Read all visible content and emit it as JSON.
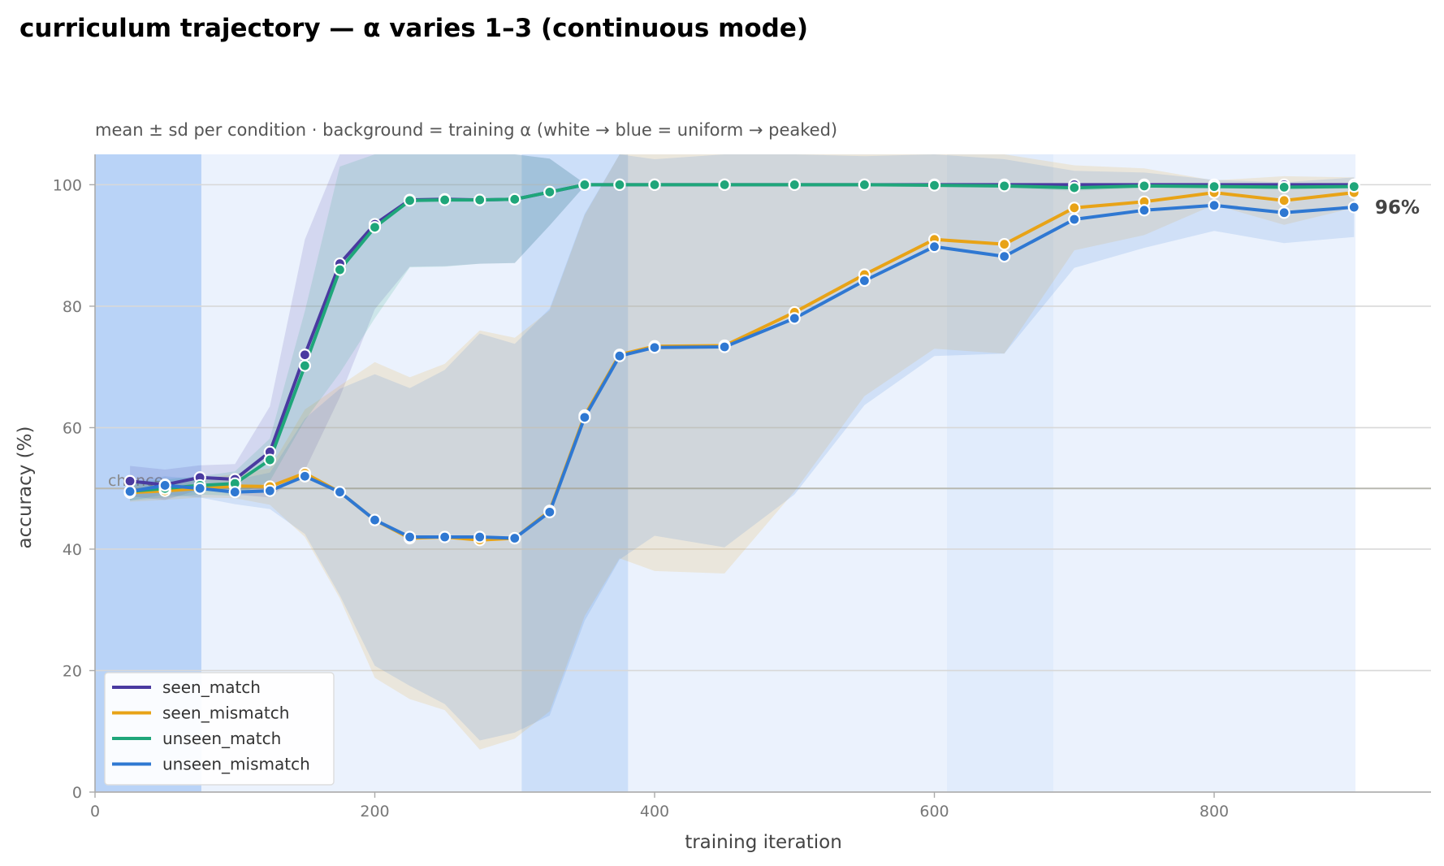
{
  "chart_data": {
    "type": "line",
    "title": "curriculum trajectory — α varies 1–3 (continuous mode)",
    "subtitle": "mean ± sd per condition · background = training α (white → blue = uniform → peaked)",
    "xlabel": "training iteration",
    "ylabel": "accuracy (%)",
    "xlim": [
      0,
      955
    ],
    "ylim": [
      0,
      105
    ],
    "xticks": [
      0,
      200,
      400,
      600,
      800
    ],
    "yticks": [
      0,
      20,
      40,
      60,
      80,
      100
    ],
    "grid": "y",
    "legend_position": "lower-left",
    "chance_level": 50,
    "chance_label": "chance",
    "end_label": "96%",
    "x": [
      25,
      50,
      75,
      100,
      125,
      150,
      175,
      200,
      225,
      250,
      275,
      300,
      325,
      350,
      375,
      400,
      450,
      500,
      550,
      600,
      650,
      700,
      750,
      800,
      850,
      900
    ],
    "background_alpha_bands": [
      {
        "x0": 0,
        "x1": 76,
        "level": 0.75
      },
      {
        "x0": 76,
        "x1": 305,
        "level": 0.22
      },
      {
        "x0": 305,
        "x1": 381,
        "level": 0.55
      },
      {
        "x0": 381,
        "x1": 609,
        "level": 0.22
      },
      {
        "x0": 609,
        "x1": 685,
        "level": 0.32
      },
      {
        "x0": 685,
        "x1": 901,
        "level": 0.22
      }
    ],
    "series": [
      {
        "name": "seen_match",
        "color": "#4a3aa0",
        "values": [
          51.2,
          50.6,
          51.8,
          51.5,
          56.0,
          72.0,
          87.0,
          93.5,
          97.5,
          97.6,
          97.5,
          97.6,
          98.8,
          100,
          100,
          100,
          100,
          100,
          100,
          100,
          100,
          100,
          100,
          100,
          100,
          100
        ],
        "sd": [
          2.5,
          2.5,
          2.0,
          2.5,
          7.5,
          19.0,
          22.0,
          14.0,
          11.0,
          11.0,
          10.5,
          10.5,
          5.5,
          0.2,
          0.2,
          0.2,
          0.2,
          0.2,
          0.2,
          0.2,
          0.2,
          0.2,
          0.2,
          0.2,
          0.2,
          0.2
        ]
      },
      {
        "name": "seen_mismatch",
        "color": "#e8a317",
        "values": [
          49.3,
          49.6,
          50.0,
          50.4,
          50.3,
          52.5,
          49.4,
          44.8,
          41.8,
          42.0,
          41.5,
          41.8,
          46.3,
          62.0,
          72.0,
          73.4,
          73.5,
          79.0,
          85.2,
          91.0,
          90.2,
          96.2,
          97.2,
          98.7,
          97.4,
          98.7
        ],
        "sd": [
          1.5,
          1.5,
          1.5,
          2.0,
          3.0,
          10.5,
          17.5,
          26.0,
          26.5,
          28.5,
          34.5,
          33.0,
          33.0,
          33.0,
          33.5,
          37.0,
          37.5,
          29.5,
          20.0,
          18.0,
          18.0,
          7.0,
          5.5,
          2.0,
          4.0,
          2.5
        ]
      },
      {
        "name": "unseen_match",
        "color": "#1fa67a",
        "values": [
          49.5,
          50.0,
          50.5,
          50.8,
          54.7,
          70.2,
          86.0,
          93.0,
          97.4,
          97.5,
          97.5,
          97.6,
          98.8,
          100,
          100,
          100,
          100,
          100,
          100,
          99.9,
          99.8,
          99.5,
          99.8,
          99.7,
          99.6,
          99.7
        ],
        "sd": [
          1.5,
          1.5,
          1.5,
          2.0,
          3.5,
          9.0,
          17.0,
          15.0,
          11.0,
          11.0,
          10.5,
          10.5,
          5.5,
          0.2,
          0.2,
          0.2,
          0.2,
          0.2,
          0.2,
          0.2,
          0.3,
          0.5,
          0.3,
          0.3,
          0.4,
          0.3
        ]
      },
      {
        "name": "unseen_mismatch",
        "color": "#2f78d2",
        "values": [
          49.5,
          50.5,
          50.0,
          49.4,
          49.6,
          52.0,
          49.4,
          44.8,
          42.0,
          42.0,
          42.0,
          41.8,
          46.1,
          61.7,
          71.8,
          73.2,
          73.3,
          78.0,
          84.2,
          89.8,
          88.2,
          94.3,
          95.8,
          96.6,
          95.4,
          96.3
        ],
        "sd": [
          1.5,
          1.5,
          1.5,
          2.0,
          3.0,
          9.5,
          17.0,
          24.0,
          24.5,
          27.5,
          33.5,
          32.0,
          33.5,
          33.5,
          33.5,
          31.0,
          33.0,
          29.0,
          20.5,
          18.0,
          16.0,
          8.0,
          6.2,
          4.2,
          5.0,
          4.9
        ]
      }
    ]
  }
}
